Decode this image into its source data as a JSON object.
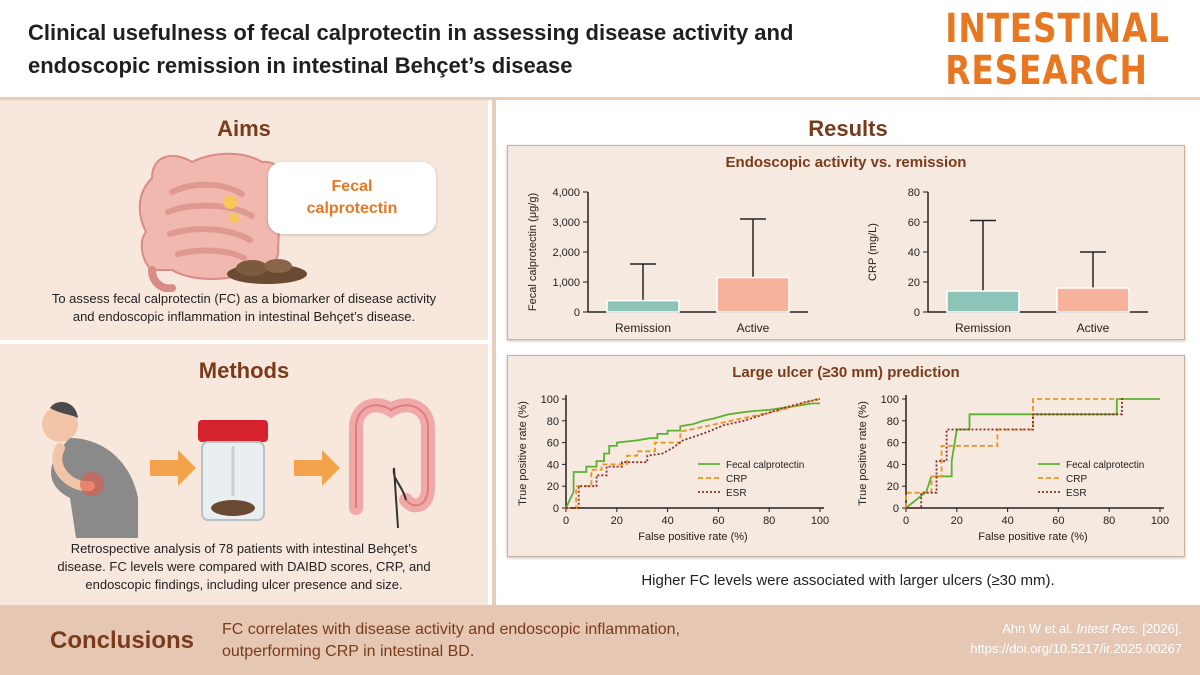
{
  "header": {
    "title_line1": "Clinical usefulness of fecal calprotectin in assessing disease activity and",
    "title_line2": "endoscopic remission in intestinal Behçet’s disease",
    "brand_line1": "INTESTINAL",
    "brand_line2": "RESEARCH"
  },
  "aims": {
    "title": "Aims",
    "bubble_line1": "Fecal",
    "bubble_line2": "calprotectin",
    "text_line1": "To assess fecal calprotectin (FC) as a biomarker of disease activity",
    "text_line2": "and endoscopic inflammation in intestinal Behçet’s disease."
  },
  "methods": {
    "title": "Methods",
    "text_line1": "Retrospective analysis of 78 patients with intestinal Behçet’s",
    "text_line2": "disease. FC levels were compared with DAIBD scores, CRP, and",
    "text_line3": "endoscopic findings, including ulcer presence and size."
  },
  "results": {
    "title": "Results",
    "panel1_title": "Endoscopic activity vs. remission",
    "panel2_title": "Large ulcer (≥30 mm) prediction",
    "footnote": "Higher FC levels were associated with larger ulcers (≥30 mm)."
  },
  "conclusions": {
    "label": "Conclusions",
    "text_line1": "FC correlates with disease activity and endoscopic inflammation,",
    "text_line2": "outperforming CRP in intestinal BD."
  },
  "citation": {
    "line1_prefix": "Ahn W et al. ",
    "line1_journal": "Intest Res.",
    "line1_suffix": " [2026].",
    "line2": "https://doi.org/10.5217/ir.2025.00267"
  },
  "colors": {
    "accent": "#e87722",
    "section_title": "#7a3b1c",
    "fc_line": "#5cb032",
    "crp_line": "#e8951e",
    "esr_line": "#8a2d2d",
    "remission_bar": "#8cc5b8",
    "active_bar": "#f6b29a"
  },
  "chart_data": [
    {
      "type": "bar",
      "categories": [
        "Remission",
        "Active"
      ],
      "values": [
        380,
        1150
      ],
      "error_upper": [
        1600,
        3100
      ],
      "ylabel": "Fecal calprotectin (μg/g)",
      "ylim": [
        0,
        4000
      ],
      "yticks": [
        "0",
        "1,000",
        "2,000",
        "3,000",
        "4,000"
      ],
      "ytick_values": [
        0,
        1000,
        2000,
        3000,
        4000
      ]
    },
    {
      "type": "bar",
      "categories": [
        "Remission",
        "Active"
      ],
      "values": [
        14,
        16
      ],
      "error_upper": [
        61,
        40
      ],
      "ylabel": "CRP (mg/L)",
      "ylim": [
        0,
        80
      ],
      "yticks": [
        "0",
        "20",
        "40",
        "60",
        "80"
      ],
      "ytick_values": [
        0,
        20,
        40,
        60,
        80
      ]
    },
    {
      "type": "line",
      "xlabel": "False positive rate (%)",
      "ylabel": "True positive rate (%)",
      "xlim": [
        0,
        100
      ],
      "ylim": [
        0,
        100
      ],
      "ticks": [
        0,
        20,
        40,
        60,
        80,
        100
      ],
      "legend": [
        "Fecal calprotectin",
        "CRP",
        "ESR"
      ],
      "series": [
        {
          "name": "Fecal calprotectin",
          "points": [
            [
              0,
              0
            ],
            [
              3,
              15
            ],
            [
              3,
              33
            ],
            [
              8,
              33
            ],
            [
              8,
              38
            ],
            [
              12,
              38
            ],
            [
              12,
              43
            ],
            [
              15,
              43
            ],
            [
              15,
              50
            ],
            [
              17,
              50
            ],
            [
              17,
              57
            ],
            [
              20,
              57
            ],
            [
              20,
              60
            ],
            [
              28,
              62
            ],
            [
              33,
              64
            ],
            [
              36,
              64
            ],
            [
              36,
              68
            ],
            [
              40,
              68
            ],
            [
              40,
              71
            ],
            [
              45,
              71
            ],
            [
              45,
              75
            ],
            [
              50,
              77
            ],
            [
              54,
              80
            ],
            [
              58,
              82
            ],
            [
              64,
              86
            ],
            [
              70,
              88
            ],
            [
              74,
              89
            ],
            [
              80,
              90
            ],
            [
              86,
              92
            ],
            [
              92,
              94
            ],
            [
              97,
              96
            ],
            [
              100,
              96
            ]
          ]
        },
        {
          "name": "CRP",
          "points": [
            [
              0,
              0
            ],
            [
              4,
              0
            ],
            [
              4,
              20
            ],
            [
              10,
              20
            ],
            [
              10,
              35
            ],
            [
              14,
              35
            ],
            [
              14,
              40
            ],
            [
              24,
              40
            ],
            [
              24,
              48
            ],
            [
              28,
              48
            ],
            [
              28,
              52
            ],
            [
              35,
              52
            ],
            [
              35,
              60
            ],
            [
              45,
              60
            ],
            [
              45,
              70
            ],
            [
              55,
              75
            ],
            [
              65,
              80
            ],
            [
              75,
              85
            ],
            [
              85,
              90
            ],
            [
              92,
              95
            ],
            [
              97,
              99
            ],
            [
              100,
              100
            ]
          ]
        },
        {
          "name": "ESR",
          "points": [
            [
              0,
              0
            ],
            [
              5,
              0
            ],
            [
              5,
              20
            ],
            [
              12,
              20
            ],
            [
              12,
              30
            ],
            [
              16,
              30
            ],
            [
              16,
              38
            ],
            [
              22,
              38
            ],
            [
              22,
              42
            ],
            [
              32,
              42
            ],
            [
              32,
              48
            ],
            [
              38,
              50
            ],
            [
              42,
              55
            ],
            [
              46,
              62
            ],
            [
              50,
              65
            ],
            [
              56,
              70
            ],
            [
              62,
              76
            ],
            [
              70,
              80
            ],
            [
              78,
              86
            ],
            [
              86,
              92
            ],
            [
              94,
              97
            ],
            [
              100,
              100
            ]
          ]
        }
      ]
    },
    {
      "type": "line",
      "xlabel": "False positive rate (%)",
      "ylabel": "True positive rate (%)",
      "xlim": [
        0,
        100
      ],
      "ylim": [
        0,
        100
      ],
      "ticks": [
        0,
        20,
        40,
        60,
        80,
        100
      ],
      "legend": [
        "Fecal calprotectin",
        "CRP",
        "ESR"
      ],
      "series": [
        {
          "name": "Fecal calprotectin",
          "points": [
            [
              0,
              0
            ],
            [
              8,
              15
            ],
            [
              10,
              29
            ],
            [
              18,
              29
            ],
            [
              18,
              43
            ],
            [
              20,
              72
            ],
            [
              25,
              72
            ],
            [
              25,
              86
            ],
            [
              83,
              86
            ],
            [
              83,
              100
            ],
            [
              100,
              100
            ]
          ]
        },
        {
          "name": "CRP",
          "points": [
            [
              0,
              0
            ],
            [
              0,
              14
            ],
            [
              10,
              14
            ],
            [
              10,
              29
            ],
            [
              14,
              29
            ],
            [
              14,
              57
            ],
            [
              36,
              57
            ],
            [
              36,
              72
            ],
            [
              50,
              72
            ],
            [
              50,
              100
            ],
            [
              84,
              100
            ]
          ]
        },
        {
          "name": "ESR",
          "points": [
            [
              0,
              0
            ],
            [
              6,
              0
            ],
            [
              6,
              14
            ],
            [
              12,
              14
            ],
            [
              12,
              43
            ],
            [
              16,
              43
            ],
            [
              16,
              72
            ],
            [
              50,
              72
            ],
            [
              50,
              86
            ],
            [
              85,
              86
            ],
            [
              85,
              100
            ],
            [
              86,
              100
            ]
          ]
        }
      ]
    }
  ]
}
